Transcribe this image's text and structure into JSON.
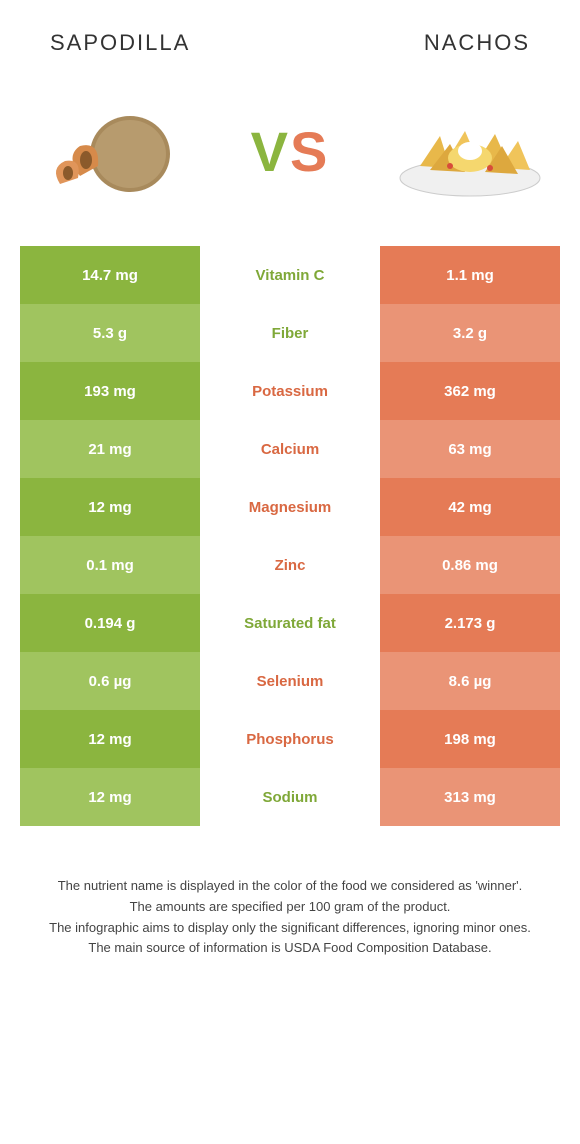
{
  "header": {
    "left_title": "Sapodilla",
    "right_title": "Nachos"
  },
  "vs": {
    "v": "V",
    "s": "S"
  },
  "colors": {
    "green_dark": "#8bb53f",
    "green_light": "#a0c45f",
    "orange_dark": "#e57b56",
    "orange_light": "#ea9476",
    "text_green": "#7fa838",
    "text_orange": "#d96842"
  },
  "rows": [
    {
      "left": "14.7 mg",
      "label": "Vitamin C",
      "right": "1.1 mg",
      "winner": "left"
    },
    {
      "left": "5.3 g",
      "label": "Fiber",
      "right": "3.2 g",
      "winner": "left"
    },
    {
      "left": "193 mg",
      "label": "Potassium",
      "right": "362 mg",
      "winner": "right"
    },
    {
      "left": "21 mg",
      "label": "Calcium",
      "right": "63 mg",
      "winner": "right"
    },
    {
      "left": "12 mg",
      "label": "Magnesium",
      "right": "42 mg",
      "winner": "right"
    },
    {
      "left": "0.1 mg",
      "label": "Zinc",
      "right": "0.86 mg",
      "winner": "right"
    },
    {
      "left": "0.194 g",
      "label": "Saturated fat",
      "right": "2.173 g",
      "winner": "left"
    },
    {
      "left": "0.6 µg",
      "label": "Selenium",
      "right": "8.6 µg",
      "winner": "right"
    },
    {
      "left": "12 mg",
      "label": "Phosphorus",
      "right": "198 mg",
      "winner": "right"
    },
    {
      "left": "12 mg",
      "label": "Sodium",
      "right": "313 mg",
      "winner": "left"
    }
  ],
  "footnotes": {
    "line1": "The nutrient name is displayed in the color of the food we considered as 'winner'.",
    "line2": "The amounts are specified per 100 gram of the product.",
    "line3": "The infographic aims to display only the significant differences, ignoring minor ones.",
    "line4": "The main source of information is USDA Food Composition Database."
  }
}
